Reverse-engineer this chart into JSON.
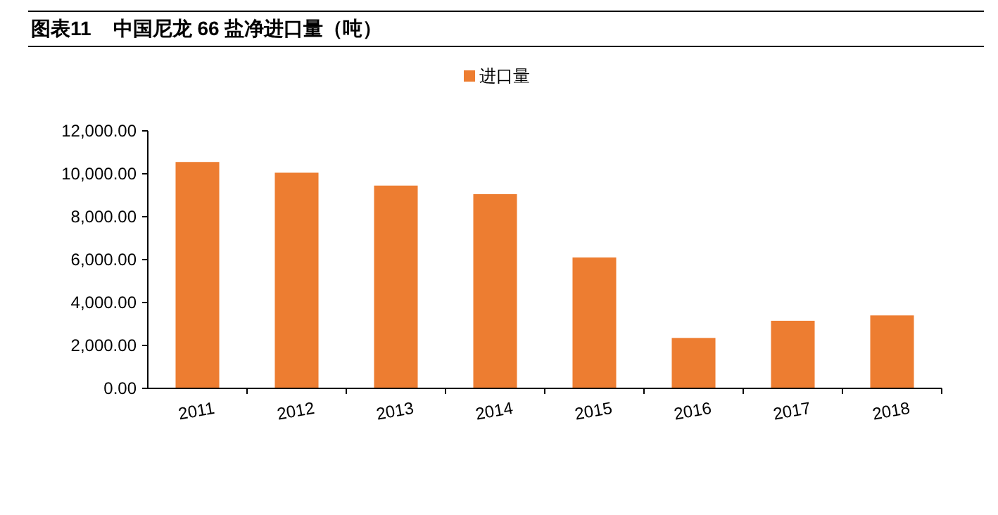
{
  "chart_data": {
    "type": "bar",
    "title": "图表11    中国尼龙 66 盐净进口量（吨）",
    "categories": [
      "2011",
      "2012",
      "2013",
      "2014",
      "2015",
      "2016",
      "2017",
      "2018"
    ],
    "series": [
      {
        "name": "进口量",
        "color": "#ed7d31",
        "values": [
          10550,
          10050,
          9450,
          9050,
          6100,
          2350,
          3150,
          3400
        ]
      }
    ],
    "ylim": [
      0,
      12000
    ],
    "yticks": [
      {
        "value": 0,
        "label": "0.00"
      },
      {
        "value": 2000,
        "label": "2,000.00"
      },
      {
        "value": 4000,
        "label": "4,000.00"
      },
      {
        "value": 6000,
        "label": "6,000.00"
      },
      {
        "value": 8000,
        "label": "8,000.00"
      },
      {
        "value": 10000,
        "label": "10,000.00"
      },
      {
        "value": 12000,
        "label": "12,000.00"
      }
    ],
    "legend": "top",
    "grid": false
  }
}
